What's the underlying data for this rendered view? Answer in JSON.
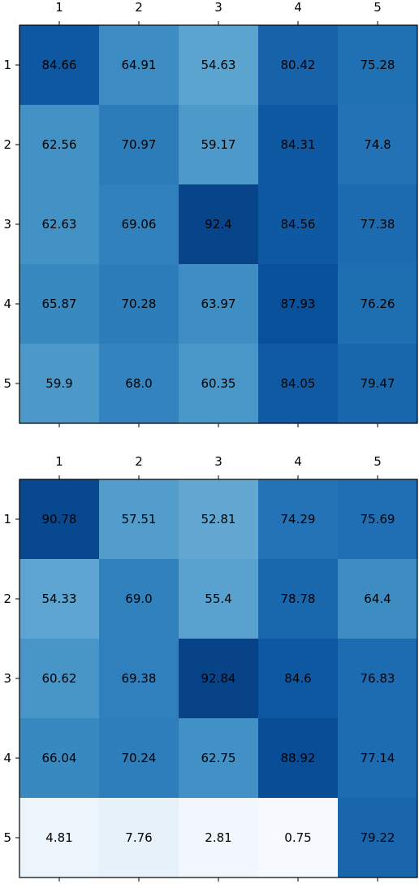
{
  "chart_data": [
    {
      "type": "heatmap",
      "colormap": "Blues",
      "color_range": [
        0,
        100
      ],
      "x_categories": [
        "1",
        "2",
        "3",
        "4",
        "5"
      ],
      "y_categories": [
        "1",
        "2",
        "3",
        "4",
        "5"
      ],
      "x_tick_position": "top",
      "values": [
        [
          84.66,
          64.91,
          54.63,
          80.42,
          75.28
        ],
        [
          62.56,
          70.97,
          59.17,
          84.31,
          74.8
        ],
        [
          62.63,
          69.06,
          92.4,
          84.56,
          77.38
        ],
        [
          65.87,
          70.28,
          63.97,
          87.93,
          76.26
        ],
        [
          59.9,
          68.0,
          60.35,
          84.05,
          79.47
        ]
      ],
      "labels": [
        [
          "84.66",
          "64.91",
          "54.63",
          "80.42",
          "75.28"
        ],
        [
          "62.56",
          "70.97",
          "59.17",
          "84.31",
          "74.8"
        ],
        [
          "62.63",
          "69.06",
          "92.4",
          "84.56",
          "77.38"
        ],
        [
          "65.87",
          "70.28",
          "63.97",
          "87.93",
          "76.26"
        ],
        [
          "59.9",
          "68.0",
          "60.35",
          "84.05",
          "79.47"
        ]
      ]
    },
    {
      "type": "heatmap",
      "colormap": "Blues",
      "color_range": [
        0,
        100
      ],
      "x_categories": [
        "1",
        "2",
        "3",
        "4",
        "5"
      ],
      "y_categories": [
        "1",
        "2",
        "3",
        "4",
        "5"
      ],
      "x_tick_position": "top",
      "values": [
        [
          90.78,
          57.51,
          52.81,
          74.29,
          75.69
        ],
        [
          54.33,
          69.0,
          55.4,
          78.78,
          64.4
        ],
        [
          60.62,
          69.38,
          92.84,
          84.6,
          76.83
        ],
        [
          66.04,
          70.24,
          62.75,
          88.92,
          77.14
        ],
        [
          4.81,
          7.76,
          2.81,
          0.75,
          79.22
        ]
      ],
      "labels": [
        [
          "90.78",
          "57.51",
          "52.81",
          "74.29",
          "75.69"
        ],
        [
          "54.33",
          "69.0",
          "55.4",
          "78.78",
          "64.4"
        ],
        [
          "60.62",
          "69.38",
          "92.84",
          "84.6",
          "76.83"
        ],
        [
          "66.04",
          "70.24",
          "62.75",
          "88.92",
          "77.14"
        ],
        [
          "4.81",
          "7.76",
          "2.81",
          "0.75",
          "79.22"
        ]
      ]
    }
  ]
}
